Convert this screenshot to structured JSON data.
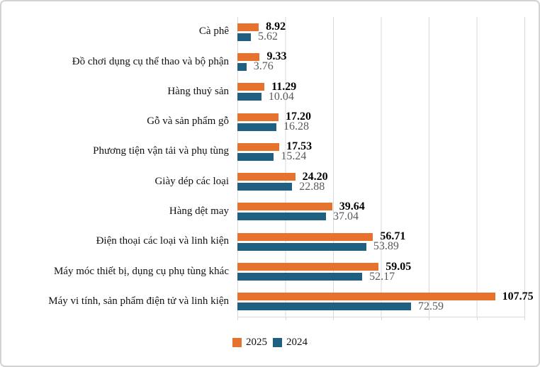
{
  "chart_data": {
    "type": "bar",
    "orientation": "horizontal",
    "title": "",
    "categories": [
      "Cà phê",
      "Đồ chơi dụng cụ thể thao và bộ phận",
      "Hàng thuỷ sản",
      "Gỗ và sản phẩm gỗ",
      "Phương tiện vận tải và phụ tùng",
      "Giày dép các loại",
      "Hàng dệt may",
      "Điện thoại các loại và linh kiện",
      "Máy móc thiết bị, dụng cụ phụ tùng khác",
      "Máy vi tính, sản phẩm điện tử và linh kiện"
    ],
    "series": [
      {
        "name": "2025",
        "color": "#E7722E",
        "value_label_color": "#000000",
        "value_label_bold": true,
        "values": [
          8.92,
          9.33,
          11.29,
          17.2,
          17.53,
          24.2,
          39.64,
          56.71,
          59.05,
          107.75
        ]
      },
      {
        "name": "2024",
        "color": "#1F5F81",
        "value_label_color": "#595959",
        "value_label_bold": false,
        "values": [
          5.62,
          3.76,
          10.04,
          16.28,
          15.24,
          22.88,
          37.04,
          53.89,
          52.17,
          72.59
        ]
      }
    ],
    "xlim": [
      0,
      120
    ],
    "gridline_interval": 20,
    "grid": true,
    "value_labels": true,
    "value_label_decimals": 2,
    "legend_position": "bottom",
    "legend_entries": [
      "2025",
      "2024"
    ]
  },
  "style": {
    "gridline_color": "#D9D9D9",
    "background": "#FFFFFF",
    "frame_border_color": "#D3D3D3"
  }
}
